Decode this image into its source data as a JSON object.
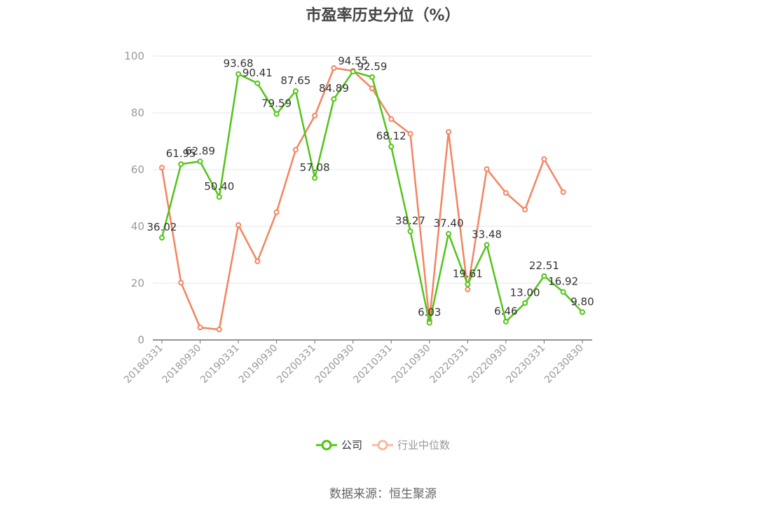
{
  "title": "市盈率历史分位（%）",
  "source": "数据来源：恒生聚源",
  "legend": {
    "company": "公司",
    "industry": "行业中位数"
  },
  "colors": {
    "company": "#52c41a",
    "industry": "#f4845f",
    "industry_legend": "#f9b99f",
    "grid": "#e0e6f1",
    "axis": "#6e7079"
  },
  "chart_data": {
    "type": "line",
    "title": "市盈率历史分位（%）",
    "xlabel": "",
    "ylabel": "",
    "ylim": [
      0,
      100
    ],
    "yticks": [
      0,
      20,
      40,
      60,
      80,
      100
    ],
    "grid": true,
    "legend_position": "bottom",
    "x_tick_labels": [
      "20180331",
      "20180930",
      "20190331",
      "20190930",
      "20200331",
      "20200930",
      "20210331",
      "20210930",
      "20220331",
      "20220930",
      "20230331",
      "20230830"
    ],
    "x": [
      "20180331",
      "20180630",
      "20180930",
      "20181231",
      "20190331",
      "20190630",
      "20190930",
      "20191231",
      "20200331",
      "20200630",
      "20200930",
      "20201231",
      "20210331",
      "20210630",
      "20210930",
      "20211231",
      "20220331",
      "20220630",
      "20220930",
      "20221231",
      "20230331",
      "20230630",
      "20230830"
    ],
    "series": [
      {
        "name": "公司",
        "values": [
          36.02,
          61.95,
          62.89,
          50.4,
          93.68,
          90.41,
          79.59,
          87.65,
          57.08,
          84.89,
          94.55,
          92.59,
          68.12,
          38.27,
          6.03,
          37.4,
          19.61,
          33.48,
          6.46,
          13.0,
          22.51,
          16.92,
          9.8
        ],
        "labels": [
          "36.02",
          "61.95",
          "62.89",
          "50.40",
          "93.68",
          "90.41",
          "79.59",
          "87.65",
          "57.08",
          "84.89",
          "94.55",
          "92.59",
          "68.12",
          "38.27",
          "6.03",
          "37.40",
          "19.61",
          "33.48",
          "6.46",
          "13.00",
          "22.51",
          "16.92",
          "9.80"
        ]
      },
      {
        "name": "行业中位数",
        "values": [
          60.7,
          20.2,
          4.4,
          3.7,
          40.5,
          27.7,
          45.0,
          67.0,
          79.0,
          95.8,
          94.8,
          88.6,
          77.8,
          72.6,
          6.9,
          73.3,
          17.8,
          60.2,
          51.8,
          45.9,
          63.7,
          52.1,
          null
        ]
      }
    ]
  }
}
